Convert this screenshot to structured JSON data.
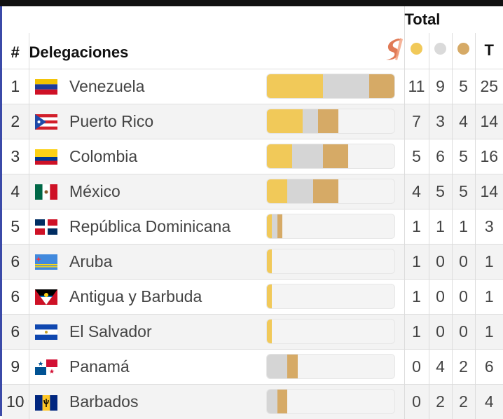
{
  "header": {
    "total_label": "Total",
    "rank_label": "#",
    "delegations_label": "Delegaciones",
    "t_label": "T"
  },
  "colors": {
    "gold": "#f1c959",
    "silver": "#d5d5d5",
    "bronze": "#d6aa66",
    "bar_bg": "#f4f4f4"
  },
  "rows": [
    {
      "rank": "1",
      "country": "Venezuela",
      "flag": "venezuela-flag-icon",
      "gold": "11",
      "silver": "9",
      "bronze": "5",
      "total": "25"
    },
    {
      "rank": "2",
      "country": "Puerto Rico",
      "flag": "puerto-rico-flag-icon",
      "gold": "7",
      "silver": "3",
      "bronze": "4",
      "total": "14"
    },
    {
      "rank": "3",
      "country": "Colombia",
      "flag": "colombia-flag-icon",
      "gold": "5",
      "silver": "6",
      "bronze": "5",
      "total": "16"
    },
    {
      "rank": "4",
      "country": "México",
      "flag": "mexico-flag-icon",
      "gold": "4",
      "silver": "5",
      "bronze": "5",
      "total": "14"
    },
    {
      "rank": "5",
      "country": "República Dominicana",
      "flag": "dominican-republic-flag-icon",
      "gold": "1",
      "silver": "1",
      "bronze": "1",
      "total": "3"
    },
    {
      "rank": "6",
      "country": "Aruba",
      "flag": "aruba-flag-icon",
      "gold": "1",
      "silver": "0",
      "bronze": "0",
      "total": "1"
    },
    {
      "rank": "6",
      "country": "Antigua y Barbuda",
      "flag": "antigua-barbuda-flag-icon",
      "gold": "1",
      "silver": "0",
      "bronze": "0",
      "total": "1"
    },
    {
      "rank": "6",
      "country": "El Salvador",
      "flag": "el-salvador-flag-icon",
      "gold": "1",
      "silver": "0",
      "bronze": "0",
      "total": "1"
    },
    {
      "rank": "9",
      "country": "Panamá",
      "flag": "panama-flag-icon",
      "gold": "0",
      "silver": "4",
      "bronze": "2",
      "total": "6"
    },
    {
      "rank": "10",
      "country": "Barbados",
      "flag": "barbados-flag-icon",
      "gold": "0",
      "silver": "2",
      "bronze": "2",
      "total": "4"
    }
  ]
}
